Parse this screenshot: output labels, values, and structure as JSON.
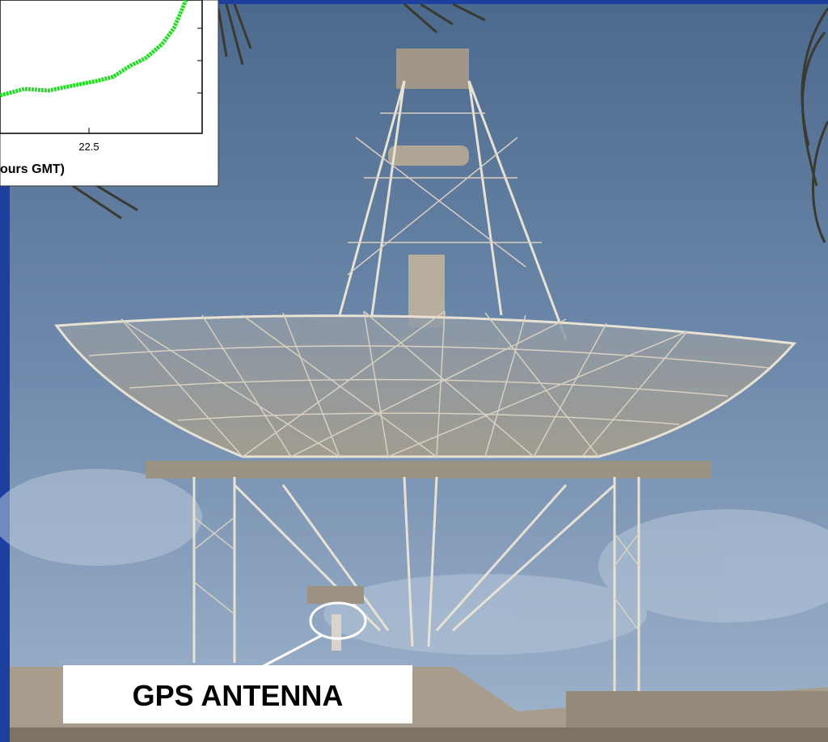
{
  "inset": {
    "tick_label": "22.5",
    "axis_label": "ours GMT)"
  },
  "callout": {
    "label": "GPS ANTENNA"
  }
}
